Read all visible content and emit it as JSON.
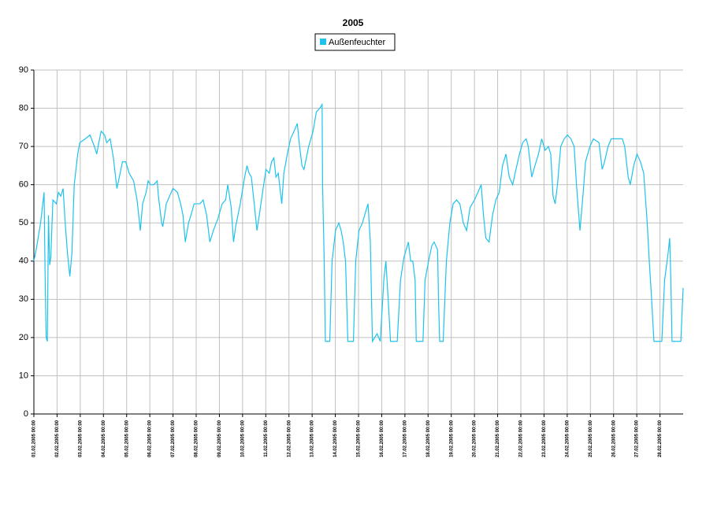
{
  "chart_data": {
    "type": "line",
    "title": "2005",
    "grid": true,
    "legend": "top",
    "x": [
      0,
      0.1,
      0.29,
      0.44,
      0.48,
      0.53,
      0.58,
      0.63,
      0.68,
      0.73,
      0.82,
      0.97,
      1.06,
      1.16,
      1.26,
      1.35,
      1.45,
      1.55,
      1.64,
      1.74,
      1.89,
      1.98,
      2.22,
      2.42,
      2.61,
      2.71,
      2.8,
      2.9,
      3.05,
      3.14,
      3.29,
      3.43,
      3.58,
      3.72,
      3.82,
      3.96,
      4.11,
      4.3,
      4.45,
      4.59,
      4.69,
      4.84,
      4.93,
      5.03,
      5.17,
      5.32,
      5.37,
      5.51,
      5.56,
      5.71,
      5.85,
      6.0,
      6.19,
      6.33,
      6.43,
      6.53,
      6.67,
      6.82,
      6.91,
      7.16,
      7.3,
      7.45,
      7.59,
      7.74,
      7.93,
      8.12,
      8.27,
      8.36,
      8.51,
      8.61,
      8.7,
      8.9,
      9.09,
      9.19,
      9.28,
      9.38,
      9.52,
      9.62,
      9.72,
      9.91,
      10.01,
      10.15,
      10.25,
      10.35,
      10.44,
      10.54,
      10.69,
      10.78,
      10.93,
      11.07,
      11.22,
      11.36,
      11.46,
      11.56,
      11.65,
      11.85,
      12.04,
      12.18,
      12.33,
      12.43,
      12.45,
      12.52,
      12.57,
      12.76,
      12.86,
      13.01,
      13.15,
      13.25,
      13.34,
      13.44,
      13.54,
      13.78,
      13.88,
      14.02,
      14.17,
      14.31,
      14.41,
      14.51,
      14.6,
      14.8,
      14.94,
      15.09,
      15.18,
      15.28,
      15.38,
      15.67,
      15.81,
      15.96,
      16.15,
      16.25,
      16.34,
      16.44,
      16.49,
      16.78,
      16.87,
      17.02,
      17.16,
      17.26,
      17.41,
      17.45,
      17.5,
      17.65,
      17.79,
      17.94,
      18.08,
      18.23,
      18.37,
      18.52,
      18.66,
      18.81,
      19.0,
      19.15,
      19.29,
      19.39,
      19.49,
      19.63,
      19.78,
      19.92,
      20.07,
      20.21,
      20.36,
      20.5,
      20.65,
      20.79,
      20.94,
      21.08,
      21.23,
      21.32,
      21.47,
      21.61,
      21.76,
      21.9,
      22.05,
      22.19,
      22.29,
      22.39,
      22.48,
      22.58,
      22.72,
      22.87,
      23.01,
      23.16,
      23.3,
      23.4,
      23.55,
      23.69,
      23.79,
      23.98,
      24.13,
      24.37,
      24.51,
      24.61,
      24.76,
      24.9,
      25.14,
      25.38,
      25.48,
      25.63,
      25.72,
      25.87,
      26.01,
      26.16,
      26.3,
      26.45,
      26.54,
      26.64,
      26.74,
      27.08,
      27.2,
      27.35,
      27.42,
      27.47,
      27.52,
      27.9,
      28
    ],
    "series": [
      {
        "name": "Außenfeuchter",
        "color": "#1ec3ec",
        "values": [
          40,
          43,
          50,
          58,
          38,
          20,
          19,
          52,
          39,
          41,
          56,
          55,
          58,
          57,
          59,
          50,
          42,
          36,
          42,
          60,
          68,
          71,
          72,
          73,
          70,
          68,
          71,
          74,
          73,
          71,
          72,
          67,
          59,
          63,
          66,
          66,
          63,
          61,
          56,
          48,
          55,
          58,
          61,
          60,
          60,
          61,
          57,
          50,
          49,
          55,
          57,
          59,
          58,
          55,
          52,
          45,
          50,
          53,
          55,
          55,
          56,
          52,
          45,
          48,
          51,
          55,
          56,
          60,
          54,
          45,
          49,
          55,
          62,
          65,
          63,
          62,
          54,
          48,
          52,
          60,
          64,
          63,
          66,
          67,
          62,
          63,
          55,
          63,
          68,
          72,
          74,
          76,
          70,
          65,
          64,
          70,
          74,
          79,
          80,
          81,
          60,
          40,
          19,
          19,
          40,
          48,
          50,
          48,
          45,
          40,
          19,
          19,
          40,
          48,
          50,
          53,
          55,
          45,
          19,
          21,
          19,
          35,
          40,
          30,
          19,
          19,
          35,
          41,
          45,
          40,
          40,
          35,
          19,
          19,
          35,
          40,
          44,
          45,
          43,
          30,
          19,
          19,
          40,
          50,
          55,
          56,
          55,
          50,
          48,
          54,
          56,
          58,
          60,
          52,
          46,
          45,
          52,
          56,
          58,
          65,
          68,
          62,
          60,
          64,
          68,
          71,
          72,
          70,
          62,
          65,
          68,
          72,
          69,
          70,
          68,
          57,
          55,
          60,
          70,
          72,
          73,
          72,
          70,
          60,
          48,
          58,
          66,
          70,
          72,
          71,
          64,
          66,
          70,
          72,
          72,
          72,
          70,
          62,
          60,
          65,
          68,
          66,
          63,
          50,
          40,
          30,
          19,
          19,
          35,
          42,
          46,
          35,
          19,
          19,
          33
        ]
      }
    ],
    "xlim": [
      0,
      28
    ],
    "xticks": [
      {
        "value": 0,
        "label": "01.02.2005 00:00"
      },
      {
        "value": 1,
        "label": "02.02.2005 00:00"
      },
      {
        "value": 2,
        "label": "03.02.2005 00:00"
      },
      {
        "value": 3,
        "label": "04.02.2005 00:00"
      },
      {
        "value": 4,
        "label": "05.02.2005 00:00"
      },
      {
        "value": 5,
        "label": "06.02.2005 00:00"
      },
      {
        "value": 6,
        "label": "07.02.2005 00:00"
      },
      {
        "value": 7,
        "label": "08.02.2005 00:00"
      },
      {
        "value": 8,
        "label": "09.02.2005 00:00"
      },
      {
        "value": 9,
        "label": "10.02.2005 00:00"
      },
      {
        "value": 10,
        "label": "11.02.2005 00:00"
      },
      {
        "value": 11,
        "label": "12.02.2005 00:00"
      },
      {
        "value": 12,
        "label": "13.02.2005 00:00"
      },
      {
        "value": 13,
        "label": "14.02.2005 00:00"
      },
      {
        "value": 14,
        "label": "15.02.2005 00:00"
      },
      {
        "value": 15,
        "label": "16.02.2005 00:00"
      },
      {
        "value": 16,
        "label": "17.02.2005 00:00"
      },
      {
        "value": 17,
        "label": "18.02.2005 00:00"
      },
      {
        "value": 18,
        "label": "19.02.2005 00:00"
      },
      {
        "value": 19,
        "label": "20.02.2005 00:00"
      },
      {
        "value": 20,
        "label": "21.02.2005 00:00"
      },
      {
        "value": 21,
        "label": "22.02.2005 00:00"
      },
      {
        "value": 22,
        "label": "23.02.2005 00:00"
      },
      {
        "value": 23,
        "label": "24.02.2005 00:00"
      },
      {
        "value": 24,
        "label": "25.02.2005 00:00"
      },
      {
        "value": 25,
        "label": "26.02.2005 00:00"
      },
      {
        "value": 26,
        "label": "27.02.2005 00:00"
      },
      {
        "value": 27,
        "label": "28.02.2005 00:00"
      }
    ],
    "ylim": [
      0,
      90
    ],
    "yticks": [
      0,
      10,
      20,
      30,
      40,
      50,
      60,
      70,
      80,
      90
    ]
  }
}
